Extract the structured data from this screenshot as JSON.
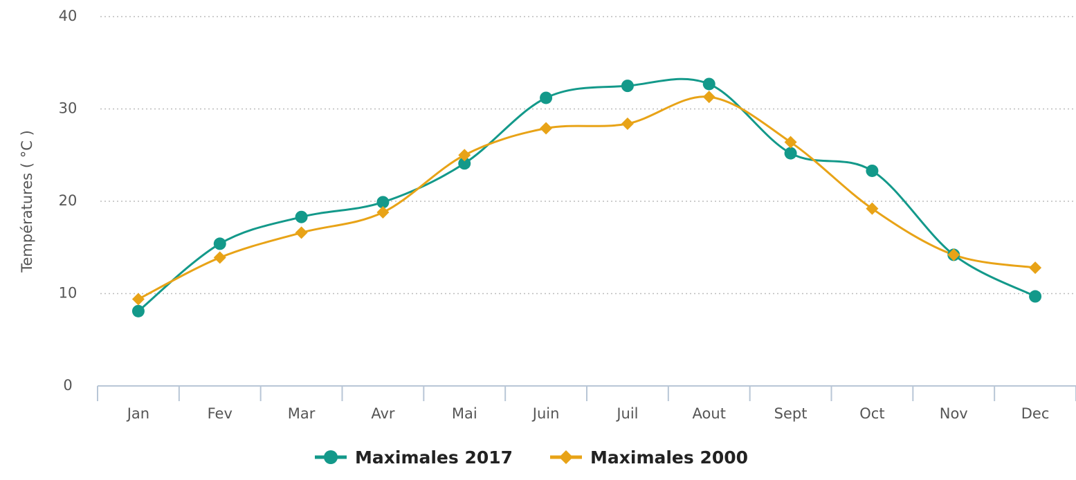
{
  "chart_data": {
    "type": "line",
    "y_label": "Températures ( °C )",
    "categories": [
      "Jan",
      "Fev",
      "Mar",
      "Avr",
      "Mai",
      "Juin",
      "Juil",
      "Aout",
      "Sept",
      "Oct",
      "Nov",
      "Dec"
    ],
    "series": [
      {
        "name": "Maximales 2017",
        "color": "#13998a",
        "marker": "circle",
        "values": [
          8.1,
          15.4,
          18.3,
          19.9,
          24.1,
          31.2,
          32.5,
          32.7,
          25.2,
          23.3,
          14.2,
          9.7
        ]
      },
      {
        "name": "Maximales 2000",
        "color": "#e8a317",
        "marker": "diamond",
        "values": [
          9.4,
          13.9,
          16.6,
          18.8,
          25.0,
          27.9,
          28.4,
          31.3,
          26.4,
          19.2,
          14.2,
          12.8
        ]
      }
    ],
    "ylim": [
      0,
      40
    ],
    "yticks": [
      0,
      10,
      20,
      30,
      40
    ],
    "grid": true
  }
}
